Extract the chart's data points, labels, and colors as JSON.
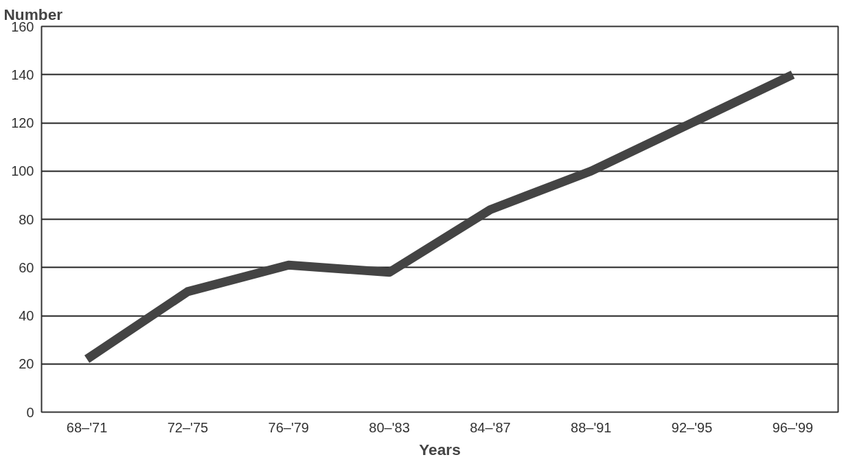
{
  "chart_data": {
    "type": "line",
    "xlabel": "Years",
    "ylabel": "Number",
    "categories": [
      "68–'71",
      "72–'75",
      "76–'79",
      "80–'83",
      "84–'87",
      "88–'91",
      "92–'95",
      "96–'99"
    ],
    "series": [
      {
        "color": "#444444",
        "values": [
          22,
          50,
          61,
          58,
          84,
          100,
          120,
          140
        ]
      }
    ],
    "ylim": [
      0,
      160
    ],
    "yticks": [
      0,
      20,
      40,
      60,
      80,
      100,
      120,
      140,
      160
    ],
    "grid": "y",
    "marker": "none",
    "line_style": "solid"
  }
}
